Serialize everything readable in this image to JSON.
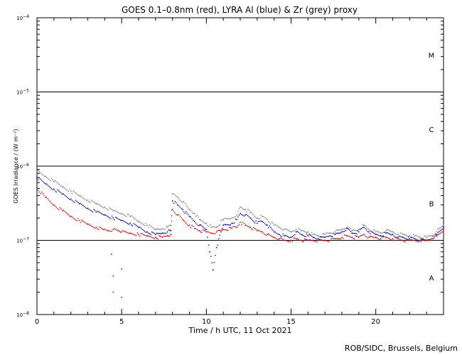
{
  "chart_data": {
    "type": "scatter",
    "title": "GOES 0.1–0.8nm (red), LYRA Al (blue) & Zr (grey) proxy",
    "xlabel": "Time / h UTC, 11 Oct 2021",
    "ylabel": "GOES Irradiance / (W m⁻²)",
    "credit": "ROB/SIDC, Brussels, Belgium",
    "xlim": [
      0,
      24
    ],
    "ylim": [
      1e-08,
      0.0001
    ],
    "yscale": "log",
    "grid": false,
    "x_ticks": [
      {
        "value": 0,
        "label": "0"
      },
      {
        "value": 5,
        "label": "5"
      },
      {
        "value": 10,
        "label": "10"
      },
      {
        "value": 15,
        "label": "15"
      },
      {
        "value": 20,
        "label": "20"
      }
    ],
    "y_ticks": [
      {
        "value": 1e-08,
        "base": "10",
        "exp": "−8"
      },
      {
        "value": 1e-07,
        "base": "10",
        "exp": "−7"
      },
      {
        "value": 1e-06,
        "base": "10",
        "exp": "−6"
      },
      {
        "value": 1e-05,
        "base": "10",
        "exp": "−5"
      },
      {
        "value": 0.0001,
        "base": "10",
        "exp": "−4"
      }
    ],
    "flare_class_lines": [
      1e-07,
      1e-06,
      1e-05
    ],
    "flare_classes": [
      {
        "label": "A",
        "y": 3.16e-08
      },
      {
        "label": "B",
        "y": 3.16e-07
      },
      {
        "label": "C",
        "y": 3.16e-06
      },
      {
        "label": "M",
        "y": 3.16e-05
      }
    ],
    "series": [
      {
        "color": "#808080",
        "x": [
          0,
          0.5,
          1,
          1.5,
          2,
          2.5,
          3,
          3.5,
          4,
          4.5,
          5,
          5.5,
          6,
          6.5,
          7,
          7.4,
          7.7,
          7.9,
          8.0,
          8.3,
          8.6,
          9,
          9.3,
          9.6,
          10,
          10.3,
          10.6,
          11,
          11.5,
          11.8,
          12,
          12.3,
          12.6,
          13,
          13.3,
          13.6,
          14,
          14.3,
          14.6,
          15,
          15.3,
          15.6,
          16,
          16.3,
          16.6,
          17,
          17.3,
          17.6,
          18,
          18.3,
          18.6,
          19,
          19.3,
          19.6,
          20,
          20.3,
          20.6,
          21,
          21.3,
          21.6,
          22,
          22.3,
          22.6,
          23,
          23.3,
          23.6,
          24
        ],
        "values": [
          8.6e-07,
          7.3e-07,
          6.2e-07,
          5.3e-07,
          4.6e-07,
          4e-07,
          3.5e-07,
          3.1e-07,
          2.8e-07,
          2.5e-07,
          2.3e-07,
          2.1e-07,
          1.8e-07,
          1.6e-07,
          1.4e-07,
          1.45e-07,
          1.5e-07,
          1.6e-07,
          4.2e-07,
          3.8e-07,
          3.3e-07,
          2.6e-07,
          2.3e-07,
          1.9e-07,
          1.7e-07,
          1.5e-07,
          1.5e-07,
          1.9e-07,
          2e-07,
          2.2e-07,
          2.8e-07,
          2.6e-07,
          2.4e-07,
          2e-07,
          2.1e-07,
          1.9e-07,
          1.6e-07,
          1.5e-07,
          1.4e-07,
          1.3e-07,
          1.4e-07,
          1.35e-07,
          1.3e-07,
          1.2e-07,
          1.15e-07,
          1.2e-07,
          1.25e-07,
          1.3e-07,
          1.4e-07,
          1.5e-07,
          1.35e-07,
          1.4e-07,
          1.6e-07,
          1.4e-07,
          1.3e-07,
          1.25e-07,
          1.35e-07,
          1.3e-07,
          1.2e-07,
          1.2e-07,
          1.15e-07,
          1.15e-07,
          1.1e-07,
          1.1e-07,
          1.15e-07,
          1.3e-07,
          1.6e-07
        ]
      },
      {
        "color": "#0000cc",
        "x": [
          0,
          0.5,
          1,
          1.5,
          2,
          2.5,
          3,
          3.5,
          4,
          4.5,
          5,
          5.5,
          6,
          6.5,
          7,
          7.4,
          7.7,
          7.9,
          8.0,
          8.3,
          8.6,
          9,
          9.3,
          9.6,
          10,
          10.2,
          10.4,
          10.6,
          11,
          11.5,
          11.8,
          12,
          12.3,
          12.6,
          13,
          13.3,
          13.6,
          14,
          14.3,
          14.6,
          15,
          15.3,
          15.6,
          16,
          16.3,
          16.6,
          17,
          17.3,
          17.6,
          18,
          18.3,
          18.6,
          19,
          19.3,
          19.6,
          20,
          20.3,
          20.6,
          21,
          21.3,
          21.6,
          22,
          22.3,
          22.6,
          23,
          23.3,
          23.6,
          24
        ],
        "values": [
          7e-07,
          5.8e-07,
          4.9e-07,
          4.2e-07,
          3.6e-07,
          3.1e-07,
          2.7e-07,
          2.4e-07,
          2.2e-07,
          2e-07,
          1.85e-07,
          1.7e-07,
          1.5e-07,
          1.3e-07,
          1.2e-07,
          1.25e-07,
          1.3e-07,
          1.35e-07,
          3.4e-07,
          3e-07,
          2.6e-07,
          2.1e-07,
          1.8e-07,
          1.6e-07,
          1.4e-07,
          7e-08,
          4e-08,
          8e-08,
          1.6e-07,
          1.7e-07,
          1.9e-07,
          2.3e-07,
          2.2e-07,
          2e-07,
          1.7e-07,
          1.8e-07,
          1.6e-07,
          1.3e-07,
          1.2e-07,
          1.15e-07,
          1.1e-07,
          1.3e-07,
          1.2e-07,
          1.15e-07,
          1.1e-07,
          1.05e-07,
          1.1e-07,
          1.15e-07,
          1.2e-07,
          1.3e-07,
          1.45e-07,
          1.25e-07,
          1.3e-07,
          1.5e-07,
          1.3e-07,
          1.2e-07,
          1.15e-07,
          1.25e-07,
          1.2e-07,
          1.1e-07,
          1.1e-07,
          1.05e-07,
          1.05e-07,
          1e-07,
          1e-07,
          1.05e-07,
          1.2e-07,
          1.5e-07
        ]
      },
      {
        "color": "#e00000",
        "x": [
          0,
          0.5,
          1,
          1.5,
          2,
          2.5,
          3,
          3.5,
          3.9,
          4.2,
          4.5,
          4.8,
          5,
          5.5,
          6,
          6.5,
          7,
          7.4,
          7.7,
          7.9,
          8.0,
          8.3,
          8.6,
          9,
          9.3,
          9.6,
          10,
          10.3,
          10.6,
          11,
          11.5,
          11.8,
          12,
          12.3,
          12.6,
          13,
          13.3,
          13.6,
          14,
          14.3,
          14.6,
          15,
          15.3,
          15.6,
          16,
          16.3,
          16.6,
          17,
          17.3,
          17.6,
          18,
          18.3,
          18.6,
          19,
          19.3,
          19.6,
          20,
          20.3,
          20.6,
          21,
          21.3,
          21.6,
          22,
          22.3,
          22.6,
          23,
          23.3,
          23.6,
          24
        ],
        "values": [
          5e-07,
          3.8e-07,
          3e-07,
          2.5e-07,
          2.1e-07,
          1.85e-07,
          1.65e-07,
          1.5e-07,
          1.4e-07,
          1.35e-07,
          1.4e-07,
          1.35e-07,
          1.3e-07,
          1.25e-07,
          1.2e-07,
          1.15e-07,
          1.1e-07,
          1.1e-07,
          1.15e-07,
          1.2e-07,
          2.6e-07,
          2.2e-07,
          1.9e-07,
          1.6e-07,
          1.45e-07,
          1.35e-07,
          1.3e-07,
          1.25e-07,
          1.3e-07,
          1.4e-07,
          1.45e-07,
          1.5e-07,
          1.75e-07,
          1.6e-07,
          1.5e-07,
          1.35e-07,
          1.3e-07,
          1.2e-07,
          1.1e-07,
          1.05e-07,
          1e-07,
          1e-07,
          1.05e-07,
          1e-07,
          1e-07,
          1e-07,
          1e-07,
          1e-07,
          1e-07,
          1.05e-07,
          1.1e-07,
          1.15e-07,
          1.1e-07,
          1.1e-07,
          1.2e-07,
          1.1e-07,
          1.1e-07,
          1.05e-07,
          1.1e-07,
          1.05e-07,
          1.05e-07,
          1e-07,
          1e-07,
          1e-07,
          1e-07,
          1e-07,
          1.05e-07,
          1.15e-07,
          1.4e-07
        ]
      },
      {
        "color": "#e00000",
        "x": [
          4.4,
          4.5,
          4.5,
          5.0,
          5.0
        ],
        "values": [
          6.5e-08,
          3.3e-08,
          2e-08,
          4.1e-08,
          1.7e-08
        ]
      }
    ]
  }
}
